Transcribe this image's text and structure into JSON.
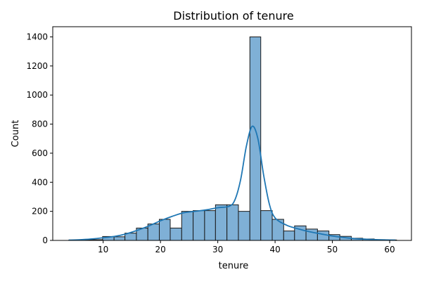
{
  "chart_data": {
    "type": "histogram",
    "title": "Distribution of tenure",
    "xlabel": "tenure",
    "ylabel": "Count",
    "xlim": [
      1.2,
      63.8
    ],
    "ylim": [
      0,
      1470
    ],
    "xticks": [
      10,
      20,
      30,
      40,
      50,
      60
    ],
    "yticks": [
      0,
      200,
      400,
      600,
      800,
      1000,
      1200,
      1400
    ],
    "grid": false,
    "bar_color": "#7fb0d6",
    "edge_color": "#1a1a1a",
    "kde_color": "#1f77b4",
    "bins": [
      {
        "x0": 4.0,
        "x1": 5.9,
        "count": 2
      },
      {
        "x0": 5.9,
        "x1": 7.9,
        "count": 3
      },
      {
        "x0": 7.9,
        "x1": 9.9,
        "count": 5
      },
      {
        "x0": 9.9,
        "x1": 11.9,
        "count": 27
      },
      {
        "x0": 11.9,
        "x1": 13.8,
        "count": 25
      },
      {
        "x0": 13.8,
        "x1": 15.8,
        "count": 50
      },
      {
        "x0": 15.8,
        "x1": 17.8,
        "count": 85
      },
      {
        "x0": 17.8,
        "x1": 19.8,
        "count": 113
      },
      {
        "x0": 19.8,
        "x1": 21.7,
        "count": 145
      },
      {
        "x0": 21.7,
        "x1": 23.7,
        "count": 85
      },
      {
        "x0": 23.7,
        "x1": 25.7,
        "count": 200
      },
      {
        "x0": 25.7,
        "x1": 27.7,
        "count": 205
      },
      {
        "x0": 27.7,
        "x1": 29.6,
        "count": 205
      },
      {
        "x0": 29.6,
        "x1": 31.6,
        "count": 245
      },
      {
        "x0": 31.6,
        "x1": 33.6,
        "count": 245
      },
      {
        "x0": 33.6,
        "x1": 35.6,
        "count": 200
      },
      {
        "x0": 35.6,
        "x1": 37.5,
        "count": 1400
      },
      {
        "x0": 37.5,
        "x1": 39.5,
        "count": 205
      },
      {
        "x0": 39.5,
        "x1": 41.5,
        "count": 145
      },
      {
        "x0": 41.5,
        "x1": 43.4,
        "count": 65
      },
      {
        "x0": 43.4,
        "x1": 45.4,
        "count": 100
      },
      {
        "x0": 45.4,
        "x1": 47.4,
        "count": 78
      },
      {
        "x0": 47.4,
        "x1": 49.4,
        "count": 65
      },
      {
        "x0": 49.4,
        "x1": 51.3,
        "count": 40
      },
      {
        "x0": 51.3,
        "x1": 53.3,
        "count": 28
      },
      {
        "x0": 53.3,
        "x1": 55.3,
        "count": 15
      },
      {
        "x0": 55.3,
        "x1": 57.3,
        "count": 10
      },
      {
        "x0": 57.3,
        "x1": 59.2,
        "count": 5
      },
      {
        "x0": 59.2,
        "x1": 61.2,
        "count": 3
      }
    ],
    "kde": {
      "x": [
        4,
        6,
        8,
        10,
        12,
        14,
        16,
        18,
        20,
        22,
        24,
        26,
        28,
        30,
        32,
        33,
        34,
        35,
        36,
        37,
        38,
        39,
        40,
        42,
        44,
        46,
        48,
        50,
        52,
        54,
        56,
        58,
        60,
        61
      ],
      "y": [
        2,
        5,
        10,
        18,
        28,
        45,
        70,
        100,
        135,
        165,
        190,
        200,
        210,
        225,
        235,
        280,
        420,
        650,
        785,
        700,
        450,
        250,
        155,
        105,
        80,
        60,
        45,
        30,
        20,
        12,
        8,
        5,
        3,
        2
      ]
    }
  }
}
